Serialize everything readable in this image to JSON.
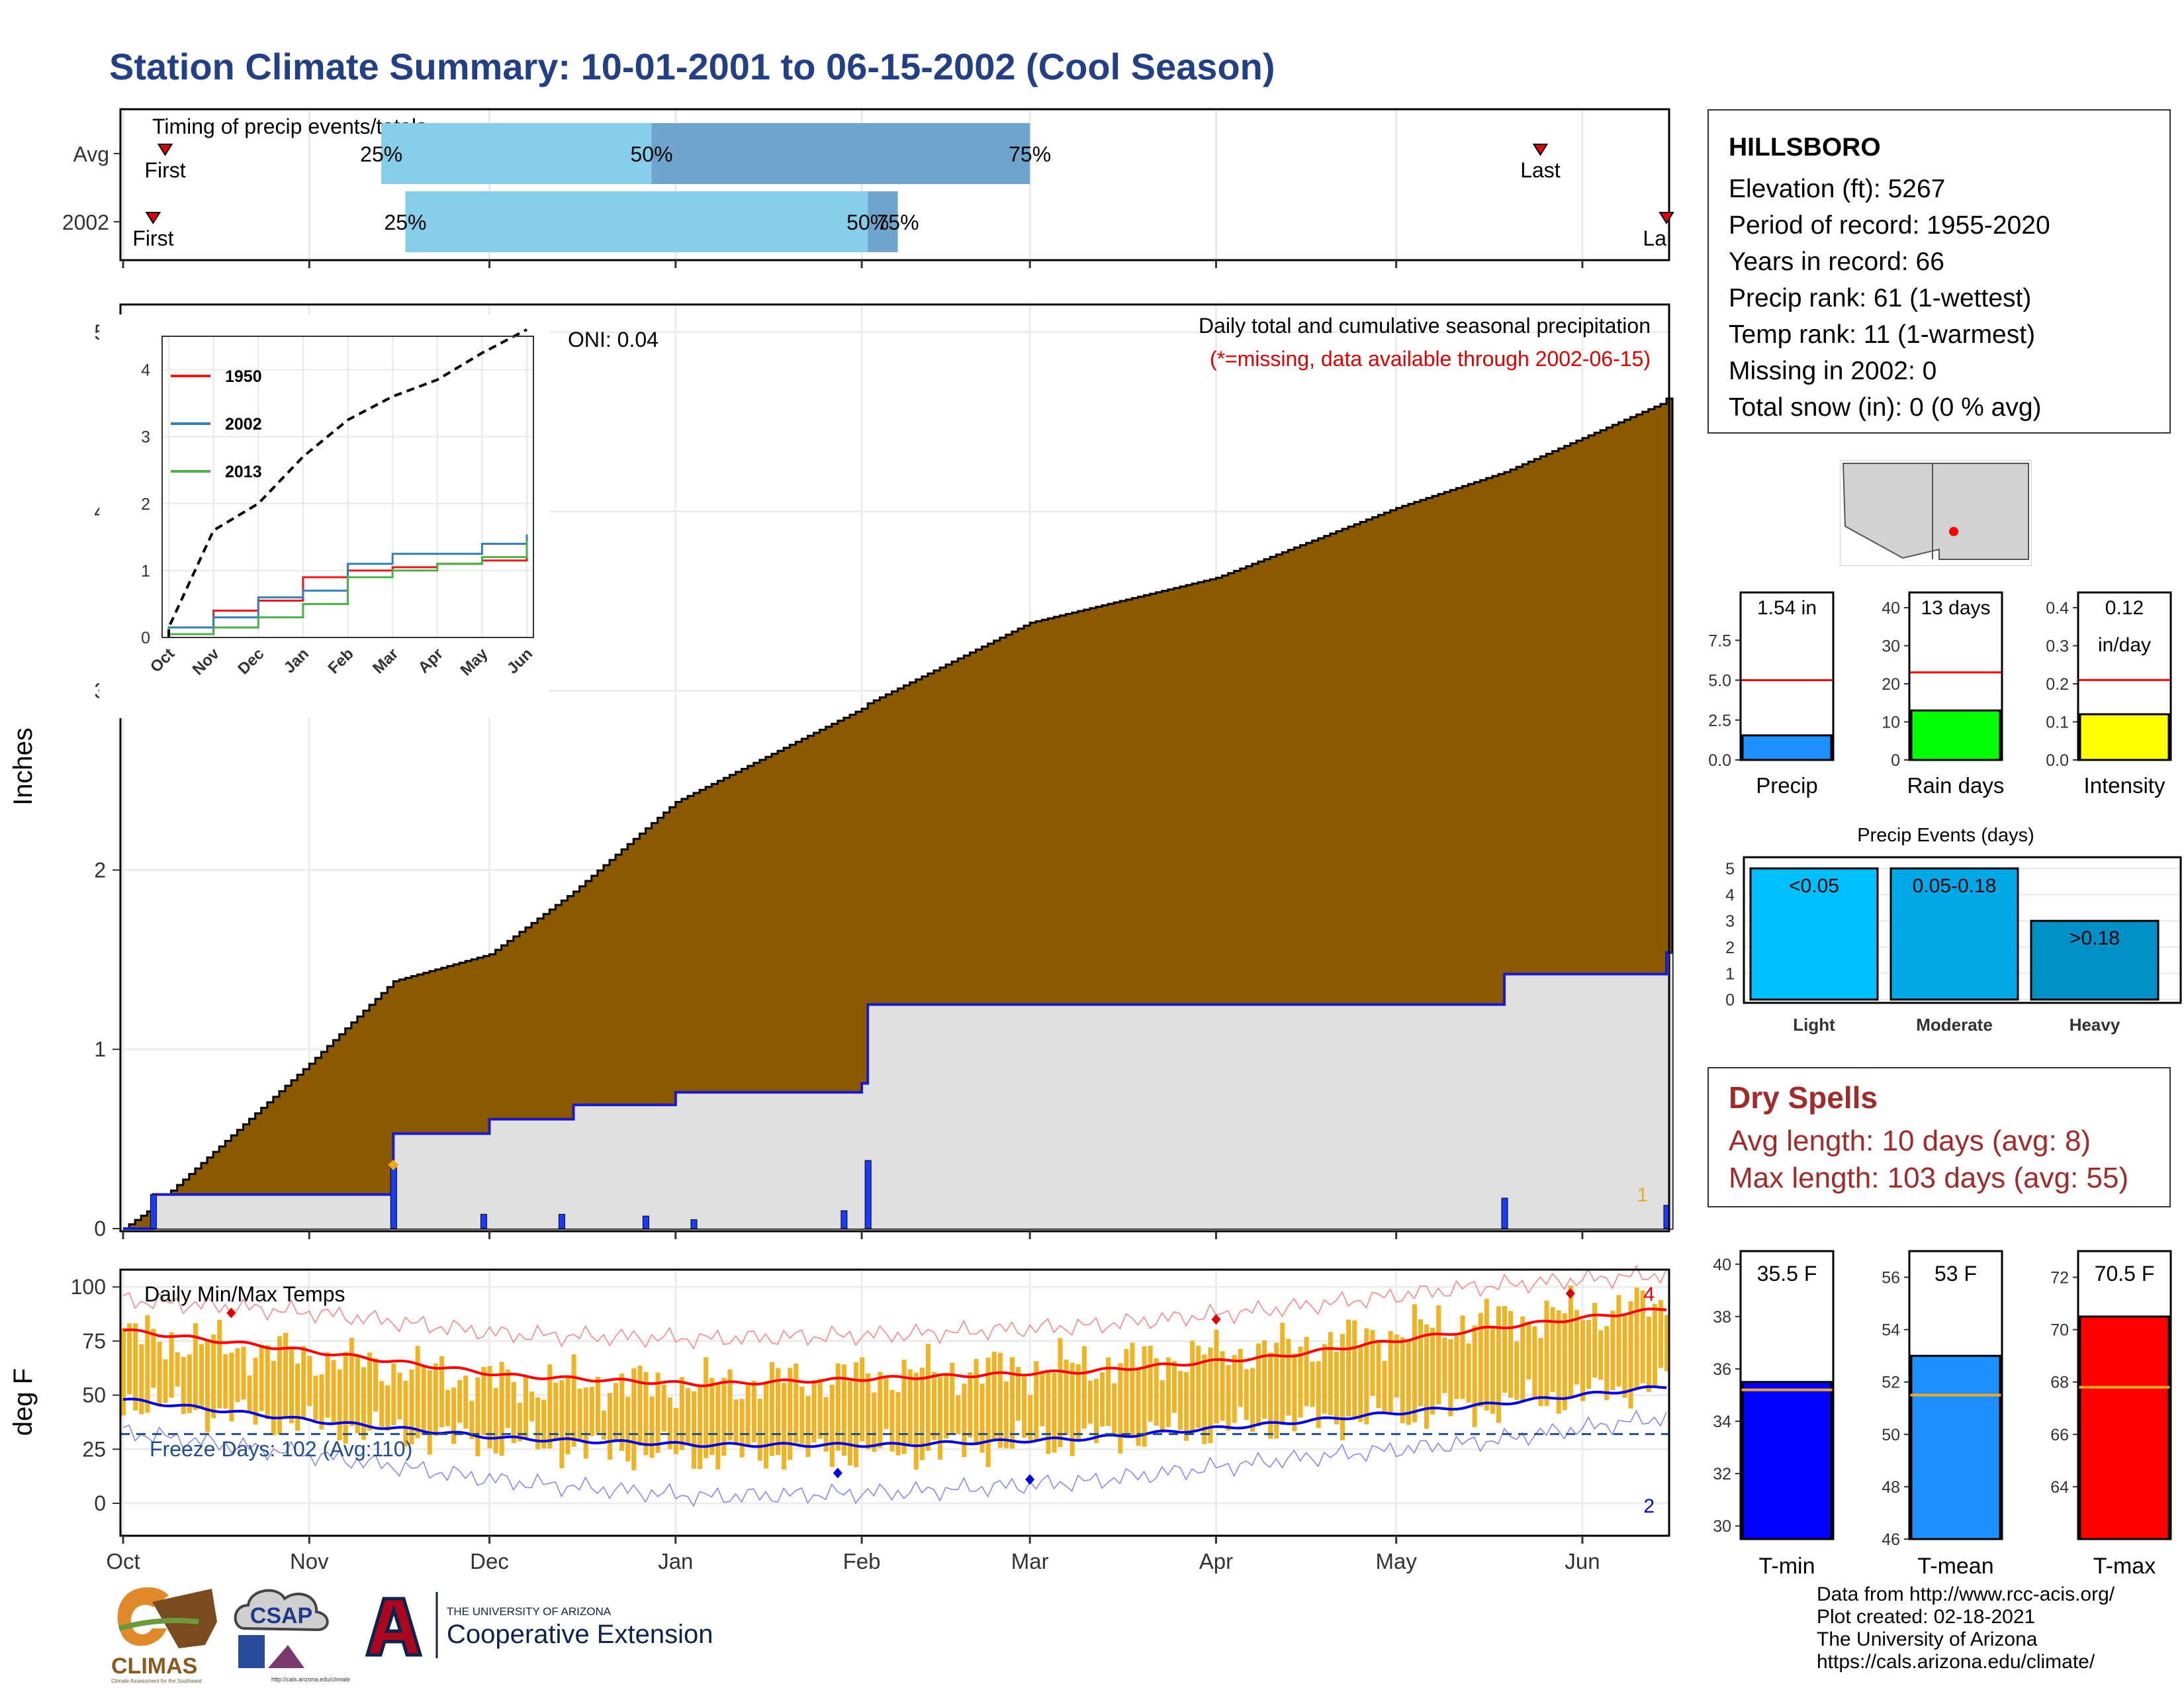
{
  "title": "Station Climate Summary: 10-01-2001 to 06-15-2002 (Cool Season)",
  "timing": {
    "label": "Timing of precip events/totals",
    "rows": [
      "Avg",
      "2002"
    ],
    "first_label": "First",
    "last_label": "Last",
    "last_label_clipped": "La",
    "avg": {
      "first": "10-08",
      "p25": "11-13",
      "p50": "12-28",
      "p75": "03-01",
      "last": "05-25"
    },
    "year": {
      "first": "10-06",
      "p25": "11-17",
      "p50": "02-02",
      "p75": "02-07",
      "last": "06-15"
    },
    "pct_labels": [
      "25%",
      "50%",
      "75%"
    ],
    "colors": {
      "light": "#87ceeb",
      "dark": "#6fa5cd"
    }
  },
  "precip_panel": {
    "ylabel": "Inches",
    "yticks": [
      "0",
      "1",
      "2",
      "3",
      "4",
      "5"
    ],
    "title": "Daily total and cumulative seasonal precipitation",
    "missing_note": "(*=missing, data available through 2002-06-15)",
    "oni": "ONI: 0.04",
    "corner_count": "1",
    "colors": {
      "avg_fill": "#8b5a00",
      "year_fill": "#e0e0e0",
      "year_line": "#1a1acc",
      "bar": "#1a3cff",
      "marker": "#f5a623"
    }
  },
  "inset": {
    "yticks": [
      "0",
      "1",
      "2",
      "3",
      "4"
    ],
    "xticks": [
      "Oct",
      "Nov",
      "Dec",
      "Jan",
      "Feb",
      "Mar",
      "Apr",
      "May",
      "Jun"
    ],
    "legend": [
      {
        "label": "1950",
        "color": "#e41a1c"
      },
      {
        "label": "2002",
        "color": "#377eb8"
      },
      {
        "label": "2013",
        "color": "#4daf4a"
      }
    ]
  },
  "temp_panel": {
    "ylabel": "deg F",
    "yticks": [
      "0",
      "25",
      "50",
      "75",
      "100"
    ],
    "title": "Daily Min/Max Temps",
    "freeze_label": "Freeze Days: 102 (Avg:110)",
    "freeze_threshold": 32,
    "count_max": "4",
    "count_min": "2",
    "colors": {
      "bars": "#f0b323",
      "avg_max": "#ff0000",
      "avg_min": "#0000e0",
      "rec_max": "#ff8080",
      "rec_min": "#8080ff",
      "freeze": "#1f4e8c"
    }
  },
  "month_axis": [
    "Oct",
    "Nov",
    "Dec",
    "Jan",
    "Feb",
    "Mar",
    "Apr",
    "May",
    "Jun"
  ],
  "station": {
    "name": "HILLSBORO",
    "lines": [
      "Elevation (ft): 5267",
      "Period of record: 1955-2020",
      "Years in record: 66",
      "Precip rank: 61 (1-wettest)",
      "Temp rank: 11 (1-warmest)",
      "Missing in 2002: 0",
      "Total snow (in): 0 (0 % avg)"
    ]
  },
  "gauges_precip": [
    {
      "label": "Precip",
      "value_text": "1.54 in",
      "value": 1.54,
      "avg": 5.0,
      "max": 10.5,
      "ticks": [
        "0.0",
        "2.5",
        "5.0",
        "7.5"
      ],
      "tick_vals": [
        0,
        2.5,
        5,
        7.5
      ],
      "color": "#1e90ff"
    },
    {
      "label": "Rain days",
      "value_text": "13 days",
      "value": 13,
      "avg": 23,
      "max": 44,
      "ticks": [
        "0",
        "10",
        "20",
        "30",
        "40"
      ],
      "tick_vals": [
        0,
        10,
        20,
        30,
        40
      ],
      "color": "#00ff00"
    },
    {
      "label": "Intensity",
      "value_text": "0.12",
      "value_text2": "in/day",
      "value": 0.12,
      "avg": 0.21,
      "max": 0.44,
      "ticks": [
        "0.0",
        "0.1",
        "0.2",
        "0.3",
        "0.4"
      ],
      "tick_vals": [
        0,
        0.1,
        0.2,
        0.3,
        0.4
      ],
      "color": "#ffff00"
    }
  ],
  "precip_events": {
    "title": "Precip Events (days)",
    "yticks": [
      "0",
      "1",
      "2",
      "3",
      "4",
      "5"
    ],
    "bars": [
      {
        "category": "Light",
        "range": "<0.05",
        "value": 5,
        "color": "#00bfff"
      },
      {
        "category": "Moderate",
        "range": "0.05-0.18",
        "value": 5,
        "color": "#00a8e8"
      },
      {
        "category": "Heavy",
        "range": ">0.18",
        "value": 3,
        "color": "#0090c8"
      }
    ]
  },
  "dry_spells": {
    "title": "Dry Spells",
    "avg_line": "Avg length: 10 days (avg: 8)",
    "max_line": "Max length: 103 days (avg: 55)"
  },
  "gauges_temp": [
    {
      "label": "T-min",
      "value_text": "35.5 F",
      "value": 35.5,
      "avg": 35.2,
      "min": 29.5,
      "max": 40.5,
      "ticks": [
        "30",
        "32",
        "34",
        "36",
        "38",
        "40"
      ],
      "tick_vals": [
        30,
        32,
        34,
        36,
        38,
        40
      ],
      "color": "#0000ff"
    },
    {
      "label": "T-mean",
      "value_text": "53 F",
      "value": 53,
      "avg": 51.5,
      "min": 46,
      "max": 57,
      "ticks": [
        "46",
        "48",
        "50",
        "52",
        "54",
        "56"
      ],
      "tick_vals": [
        46,
        48,
        50,
        52,
        54,
        56
      ],
      "color": "#1e90ff"
    },
    {
      "label": "T-max",
      "value_text": "70.5 F",
      "value": 70.5,
      "avg": 67.8,
      "min": 62,
      "max": 73,
      "ticks": [
        "64",
        "66",
        "68",
        "70",
        "72"
      ],
      "tick_vals": [
        64,
        66,
        68,
        70,
        72
      ],
      "color": "#ff0000"
    }
  ],
  "logos": {
    "climas": "CLIMAS",
    "climas_sub": "Climate Assessment for the Southwest",
    "csap": "CSAP",
    "csap_url": "http://cals.arizona.edu/climate",
    "ua_top": "THE UNIVERSITY OF ARIZONA",
    "ua_bottom": "Cooperative Extension"
  },
  "credits": [
    "Data from http://www.rcc-acis.org/",
    "Plot created: 02-18-2021",
    "The University of Arizona",
    "https://cals.arizona.edu/climate/"
  ],
  "chart_data": [
    {
      "type": "bar",
      "title": "Timing of precip events/totals",
      "categories": [
        "Avg",
        "2002"
      ],
      "series": [
        {
          "name": "Avg",
          "values": {
            "First": "10-08",
            "25%": "11-13",
            "50%": "12-28",
            "75%": "03-01",
            "Last": "05-25"
          }
        },
        {
          "name": "2002",
          "values": {
            "First": "10-06",
            "25%": "11-17",
            "50%": "02-02",
            "75%": "02-07",
            "Last": "06-15"
          }
        }
      ]
    },
    {
      "type": "area",
      "title": "Daily total and cumulative seasonal precipitation",
      "ylabel": "Inches",
      "ylim": [
        0,
        5
      ],
      "x_dates": [
        "10-01",
        "10-06",
        "11-01",
        "11-15",
        "12-01",
        "12-15",
        "01-01",
        "02-01",
        "02-02",
        "03-01",
        "04-01",
        "05-01",
        "05-19",
        "06-14",
        "06-15"
      ],
      "series": [
        {
          "name": "average cumulative",
          "values": [
            0.0,
            0.12,
            0.92,
            1.38,
            1.53,
            1.88,
            2.38,
            2.9,
            2.93,
            3.38,
            3.63,
            4.02,
            4.22,
            4.6,
            4.63
          ]
        },
        {
          "name": "2002 cumulative",
          "values": [
            0.0,
            0.19,
            0.19,
            0.53,
            0.61,
            0.69,
            0.76,
            0.81,
            1.25,
            1.25,
            1.25,
            1.25,
            1.42,
            1.42,
            1.54
          ]
        }
      ],
      "daily_bars": [
        {
          "date": "10-06",
          "value": 0.19
        },
        {
          "date": "11-15",
          "value": 0.34
        },
        {
          "date": "11-30",
          "value": 0.08
        },
        {
          "date": "12-13",
          "value": 0.08
        },
        {
          "date": "12-27",
          "value": 0.07
        },
        {
          "date": "01-04",
          "value": 0.05
        },
        {
          "date": "01-29",
          "value": 0.1
        },
        {
          "date": "02-02",
          "value": 0.38
        },
        {
          "date": "05-19",
          "value": 0.17
        },
        {
          "date": "06-15",
          "value": 0.13
        }
      ],
      "annotations": [
        "ONI: 0.04"
      ]
    },
    {
      "type": "line",
      "title": "",
      "ylim": [
        0,
        4.5
      ],
      "x": [
        "Oct",
        "Nov",
        "Dec",
        "Jan",
        "Feb",
        "Mar",
        "Apr",
        "May",
        "Jun"
      ],
      "series": [
        {
          "name": "1950",
          "values": [
            0.05,
            0.4,
            0.55,
            0.9,
            1.0,
            1.05,
            1.1,
            1.15,
            1.25
          ]
        },
        {
          "name": "2002",
          "values": [
            0.15,
            0.3,
            0.6,
            0.7,
            1.1,
            1.25,
            1.25,
            1.4,
            1.54
          ]
        },
        {
          "name": "2013",
          "values": [
            0.05,
            0.15,
            0.3,
            0.5,
            0.9,
            1.0,
            1.1,
            1.2,
            1.45
          ]
        },
        {
          "name": "",
          "values": [
            0.15,
            1.6,
            2.0,
            2.7,
            3.25,
            3.6,
            3.85,
            4.25,
            4.6
          ]
        }
      ]
    },
    {
      "type": "line",
      "title": "Daily Min/Max Temps",
      "ylabel": "deg F",
      "ylim": [
        -15,
        108
      ],
      "x": [
        "Oct",
        "Nov",
        "Dec",
        "Jan",
        "Feb",
        "Mar",
        "Apr",
        "May",
        "Jun"
      ],
      "series": [
        {
          "name": "avg max",
          "values": [
            80,
            70,
            59,
            55,
            58,
            61,
            68,
            80,
            90
          ]
        },
        {
          "name": "avg min",
          "values": [
            48,
            38,
            30,
            27,
            27,
            30,
            37,
            45,
            54
          ]
        },
        {
          "name": "record max",
          "values": [
            94,
            88,
            78,
            76,
            78,
            82,
            90,
            100,
            106
          ]
        },
        {
          "name": "record min",
          "values": [
            33,
            22,
            10,
            3,
            5,
            10,
            20,
            28,
            40
          ]
        },
        {
          "name": "daily max",
          "values": [
            78,
            68,
            56,
            55,
            60,
            64,
            72,
            84,
            92
          ]
        },
        {
          "name": "daily min",
          "values": [
            48,
            36,
            28,
            22,
            24,
            30,
            37,
            44,
            55
          ]
        }
      ],
      "annotations": [
        "Freeze Days: 102 (Avg:110)"
      ]
    },
    {
      "type": "bar",
      "title": "Precip Events (days)",
      "categories": [
        "Light",
        "Moderate",
        "Heavy"
      ],
      "values": [
        5,
        5,
        3
      ]
    }
  ]
}
